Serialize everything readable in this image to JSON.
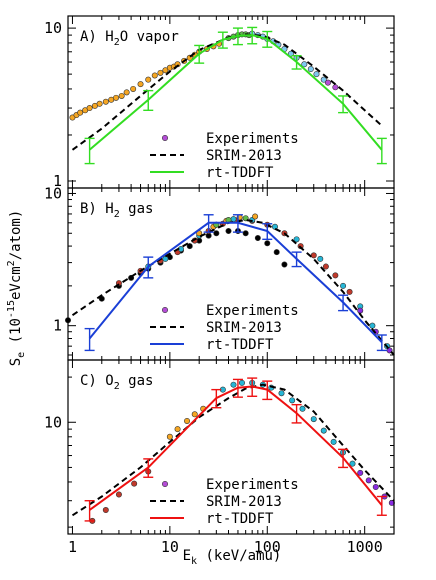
{
  "chart_data": {
    "type": "scatter",
    "xlabel_main": "E",
    "xlabel_sub": "k",
    "xlabel_rest": " (keV/amu)",
    "ylabel_main": "S",
    "ylabel_sub": "e",
    "ylabel_units_pre": "(10",
    "ylabel_units_exp": "-15",
    "ylabel_units_mid": "eVcm",
    "ylabel_units_exp2": "2",
    "ylabel_units_post": "/atom)",
    "x_scale": "log",
    "xlim": [
      0.9,
      2000
    ],
    "x_ticks": [
      "1",
      "10",
      "100",
      "1000"
    ],
    "x_tick_values": [
      1,
      10,
      100,
      1000
    ],
    "legend": [
      "Experiments",
      "SRIM-2013",
      "rt-TDDFT"
    ],
    "colors": {
      "srim": "#000000",
      "exp_marker": "#b44dd6",
      "orange": "#f5a623",
      "light_blue": "#7fc8f0",
      "cyan": "#27b6d6",
      "purple": "#8a2be2",
      "dark_red": "#c0392b",
      "gray": "#9a9a9a",
      "green_marker": "#5fb84a"
    },
    "panels": [
      {
        "label_pre": "A) H",
        "label_sub": "2",
        "label_post": "O vapor",
        "ylim": [
          0.9,
          12
        ],
        "y_ticks": [
          "1",
          "10"
        ],
        "y_tick_values": [
          1,
          10
        ],
        "tddft_color": "#33dd22",
        "tddft": {
          "x": [
            1.5,
            6,
            20,
            35,
            50,
            70,
            100,
            200,
            600,
            1500
          ],
          "y": [
            1.6,
            3.4,
            6.8,
            8.4,
            8.9,
            9.0,
            8.5,
            6.0,
            3.2,
            1.6
          ],
          "err": [
            0.3,
            0.5,
            0.9,
            1.0,
            1.1,
            1.1,
            1.0,
            0.6,
            0.4,
            0.3
          ]
        },
        "srim": {
          "x": [
            1,
            2,
            5,
            10,
            20,
            40,
            60,
            90,
            150,
            300,
            600,
            1000,
            1500
          ],
          "y": [
            1.6,
            2.2,
            3.6,
            5.2,
            7.2,
            8.7,
            9.1,
            8.9,
            7.8,
            5.6,
            3.9,
            2.9,
            2.3
          ]
        },
        "series": [
          {
            "color": "#f5a623",
            "x": [
              1,
              1.1,
              1.2,
              1.35,
              1.5,
              1.7,
              1.9,
              2.2,
              2.5,
              2.8,
              3.2,
              3.6,
              4.2,
              5,
              6,
              7,
              8,
              9,
              10,
              11,
              12,
              14,
              16,
              18,
              20,
              24,
              28,
              32
            ],
            "y": [
              2.6,
              2.7,
              2.8,
              2.9,
              3.0,
              3.1,
              3.2,
              3.3,
              3.4,
              3.5,
              3.6,
              3.8,
              4.0,
              4.3,
              4.6,
              4.9,
              5.1,
              5.3,
              5.5,
              5.6,
              5.8,
              6.1,
              6.4,
              6.7,
              7.0,
              7.3,
              7.6,
              7.9
            ]
          },
          {
            "color": "#5fb84a",
            "x": [
              40,
              45,
              50,
              55,
              60,
              65
            ],
            "y": [
              8.6,
              8.8,
              9.0,
              9.1,
              9.1,
              9.0
            ]
          },
          {
            "color": "#7fc8f0",
            "x": [
              70,
              80,
              90,
              100,
              115,
              130,
              150,
              175,
              200,
              240,
              280,
              320,
              380
            ],
            "y": [
              9.2,
              9.0,
              8.8,
              8.5,
              8.2,
              7.8,
              7.3,
              6.8,
              6.4,
              5.8,
              5.4,
              5.0,
              4.6
            ]
          },
          {
            "color": "#b44dd6",
            "x": [
              420,
              500
            ],
            "y": [
              4.4,
              4.1
            ]
          }
        ],
        "legend_marker": "#b44dd6"
      },
      {
        "label_pre": "B) H",
        "label_sub": "2",
        "label_post": " gas",
        "ylim": [
          0.55,
          11
        ],
        "y_ticks": [
          "1",
          "10"
        ],
        "y_tick_values": [
          1,
          10
        ],
        "tddft_color": "#1a3fd6",
        "tddft": {
          "x": [
            1.5,
            6,
            25,
            50,
            100,
            200,
            600,
            1500
          ],
          "y": [
            0.8,
            2.8,
            6.0,
            6.0,
            5.2,
            3.2,
            1.5,
            0.75
          ],
          "err": [
            0.15,
            0.5,
            0.9,
            0.9,
            0.7,
            0.4,
            0.2,
            0.1
          ]
        },
        "srim": {
          "x": [
            1,
            2,
            5,
            10,
            20,
            40,
            60,
            90,
            150,
            300,
            600,
            1000,
            2000
          ],
          "y": [
            1.2,
            1.7,
            2.6,
            3.5,
            4.7,
            6.0,
            6.3,
            6.0,
            5.0,
            3.2,
            1.8,
            1.1,
            0.6
          ]
        },
        "series": [
          {
            "color": "#000000",
            "x": [
              0.9,
              2,
              3,
              4,
              5,
              6,
              8,
              10,
              13,
              16,
              20,
              25,
              30,
              40,
              50,
              60,
              80,
              100,
              125,
              150
            ],
            "y": [
              1.1,
              1.6,
              2.0,
              2.3,
              2.5,
              2.7,
              3.0,
              3.3,
              3.7,
              4.0,
              4.4,
              4.8,
              5.0,
              5.2,
              5.2,
              5.0,
              4.6,
              4.2,
              3.6,
              2.9
            ]
          },
          {
            "color": "#c0392b",
            "x": [
              3,
              5,
              8,
              12,
              18,
              25,
              35,
              50,
              70,
              100,
              150,
              220,
              300,
              400,
              500,
              700
            ],
            "y": [
              2.1,
              2.6,
              3.1,
              3.6,
              4.4,
              5.2,
              5.9,
              6.3,
              6.2,
              5.8,
              5.0,
              4.0,
              3.4,
              2.8,
              2.4,
              1.8
            ]
          },
          {
            "color": "#27b6d6",
            "x": [
              6,
              9,
              13,
              20,
              30,
              45,
              70,
              120,
              200,
              350,
              600,
              900,
              1200,
              1700
            ],
            "y": [
              2.8,
              3.2,
              3.8,
              4.8,
              5.8,
              6.4,
              6.3,
              5.6,
              4.5,
              3.2,
              2.0,
              1.4,
              1.0,
              0.7
            ]
          },
          {
            "color": "#f5a623",
            "x": [
              20,
              28,
              38,
              52,
              75
            ],
            "y": [
              5.0,
              5.6,
              6.2,
              6.6,
              6.7
            ]
          },
          {
            "color": "#5fb84a",
            "x": [
              30,
              40,
              60
            ],
            "y": [
              5.8,
              6.3,
              6.5
            ]
          },
          {
            "color": "#8a2be2",
            "x": [
              900,
              1300,
              1800
            ],
            "y": [
              1.3,
              0.9,
              0.65
            ]
          }
        ],
        "legend_marker": "#b44dd6"
      },
      {
        "label_pre": "C) O",
        "label_sub": "2",
        "label_post": " gas",
        "ylim": [
          1.8,
          26
        ],
        "y_ticks": [
          "10"
        ],
        "y_tick_values": [
          10
        ],
        "tddft_color": "#ee1111",
        "tddft": {
          "x": [
            1.5,
            6,
            30,
            50,
            70,
            100,
            200,
            600,
            1500
          ],
          "y": [
            2.6,
            5.0,
            14.5,
            17.0,
            17.3,
            16.5,
            11.5,
            5.8,
            2.8
          ],
          "err": [
            0.4,
            0.7,
            2.0,
            2.3,
            2.4,
            2.3,
            1.6,
            0.8,
            0.4
          ]
        },
        "srim": {
          "x": [
            1,
            2,
            5,
            10,
            20,
            40,
            60,
            90,
            150,
            300,
            600,
            1000,
            2000
          ],
          "y": [
            2.4,
            3.2,
            5.0,
            7.4,
            10.8,
            14.5,
            16.8,
            17.8,
            16.5,
            11.8,
            7.0,
            4.8,
            3.0
          ]
        },
        "series": [
          {
            "color": "#c0392b",
            "x": [
              1.6,
              2.2,
              3,
              4.3,
              6
            ],
            "y": [
              2.2,
              2.6,
              3.3,
              3.9,
              4.7
            ]
          },
          {
            "color": "#f5a623",
            "x": [
              10,
              12,
              15,
              18,
              22
            ],
            "y": [
              8.0,
              9.0,
              10.2,
              11.3,
              12.3
            ]
          },
          {
            "color": "#27b6d6",
            "x": [
              35,
              45,
              55,
              70,
              90,
              110,
              140,
              180,
              230,
              300,
              380,
              480,
              600,
              750
            ],
            "y": [
              16.5,
              17.8,
              18.3,
              18.3,
              17.8,
              17.0,
              15.6,
              14.0,
              12.3,
              10.5,
              8.8,
              7.4,
              6.3,
              5.3
            ]
          },
          {
            "color": "#8a2be2",
            "x": [
              900,
              1100,
              1300,
              1600,
              1900
            ],
            "y": [
              4.6,
              4.1,
              3.7,
              3.2,
              2.9
            ]
          }
        ],
        "legend_marker": "#b44dd6"
      }
    ]
  }
}
